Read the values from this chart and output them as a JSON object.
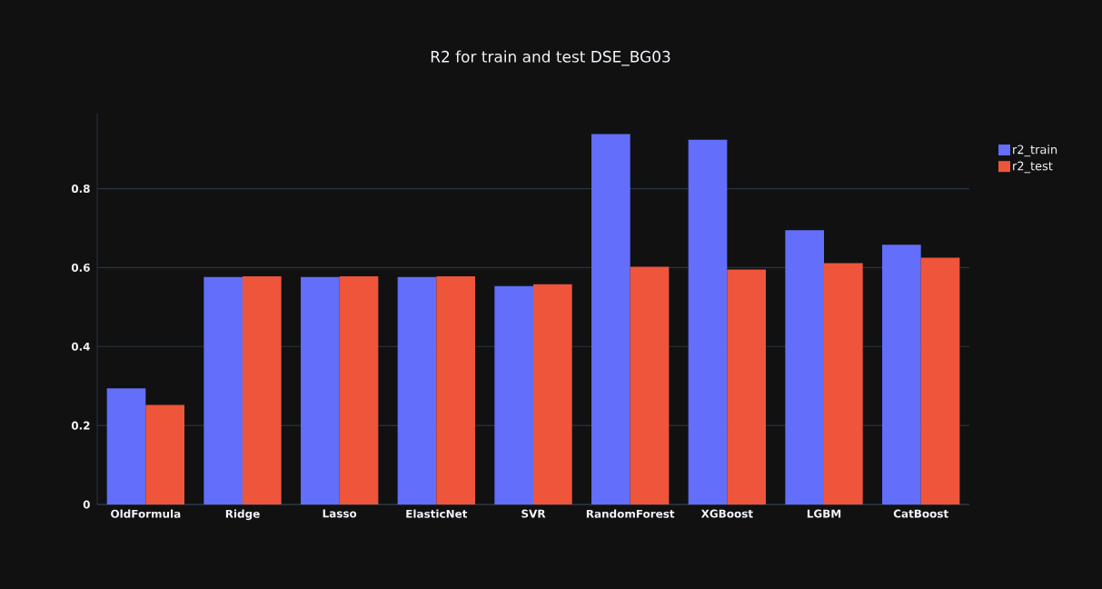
{
  "chart_data": {
    "type": "bar",
    "title": "R2 for train and test DSE_BG03",
    "categories": [
      "OldFormula",
      "Ridge",
      "Lasso",
      "ElasticNet",
      "SVR",
      "RandomForest",
      "XGBoost",
      "LGBM",
      "CatBoost"
    ],
    "series": [
      {
        "name": "r2_train",
        "color": "#636efa",
        "values": [
          0.294,
          0.576,
          0.576,
          0.576,
          0.553,
          0.938,
          0.924,
          0.695,
          0.658
        ]
      },
      {
        "name": "r2_test",
        "color": "#ef553b",
        "values": [
          0.252,
          0.578,
          0.578,
          0.578,
          0.558,
          0.602,
          0.595,
          0.611,
          0.625
        ]
      }
    ],
    "ylim": [
      0,
      0.99
    ],
    "yticks": [
      0,
      0.2,
      0.4,
      0.6,
      0.8
    ],
    "grid": "y",
    "legend": "top right"
  }
}
